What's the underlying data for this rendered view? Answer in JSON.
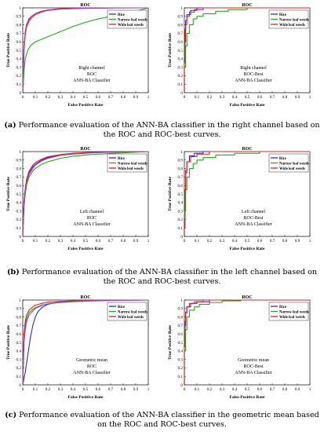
{
  "colors": {
    "rice": "#2a2ad8",
    "narrow": "#22a822",
    "wide": "#e02020",
    "purple": "#a040c0"
  },
  "captions": [
    {
      "letter": "(a)",
      "text": " Performance evaluation of the ANN-BA classifier in the right channel based on the ROC and ROC-best curves."
    },
    {
      "letter": "(b)",
      "text": " Performance evaluation of the ANN-BA classifier in the left channel based on the ROC and ROC-best curves."
    },
    {
      "letter": "(c)",
      "text": " Performance evaluation of the ANN-BA classifier in the geometric mean based on the ROC and ROC-best curves."
    }
  ],
  "chart_data": [
    {
      "type": "line",
      "title": "ROC",
      "xlabel": "False Positive Rate",
      "ylabel": "True Positive Rate",
      "xlim": [
        0,
        1
      ],
      "ylim": [
        0,
        1
      ],
      "xticks": [
        "0",
        "0.1",
        "0.2",
        "0.3",
        "0.4",
        "0.5",
        "0.6",
        "0.7",
        "0.8",
        "0.9",
        "1"
      ],
      "yticks": [
        "0",
        "0.1",
        "0.2",
        "0.3",
        "0.4",
        "0.5",
        "0.6",
        "0.7",
        "0.8",
        "0.9",
        "1"
      ],
      "legend": [
        "Rice",
        "Narrow leaf weeds",
        "Wide leaf weeds"
      ],
      "annotation": [
        "Right channel",
        "ROC",
        "ANN-BA Classifier"
      ],
      "series": [
        {
          "name": "Rice",
          "color": "rice",
          "x": [
            0,
            0.01,
            0.02,
            0.03,
            0.05,
            0.07,
            0.1,
            0.15,
            0.2,
            0.3,
            0.4,
            0.5,
            0.6,
            0.8,
            1
          ],
          "y": [
            0,
            0.5,
            0.7,
            0.8,
            0.87,
            0.9,
            0.93,
            0.96,
            0.97,
            0.985,
            0.99,
            0.995,
            0.997,
            0.999,
            1
          ]
        },
        {
          "name": "Narrow leaf weeds",
          "color": "narrow",
          "x": [
            0,
            0.01,
            0.02,
            0.04,
            0.06,
            0.1,
            0.15,
            0.2,
            0.3,
            0.4,
            0.5,
            0.6,
            0.7,
            0.8,
            0.9,
            1
          ],
          "y": [
            0,
            0.25,
            0.4,
            0.5,
            0.55,
            0.6,
            0.63,
            0.66,
            0.72,
            0.78,
            0.83,
            0.87,
            0.9,
            0.93,
            0.96,
            1
          ]
        },
        {
          "name": "Wide leaf weeds",
          "color": "wide",
          "x": [
            0,
            0.01,
            0.02,
            0.03,
            0.05,
            0.07,
            0.1,
            0.15,
            0.2,
            0.3,
            0.4,
            0.5,
            0.7,
            1
          ],
          "y": [
            0,
            0.55,
            0.72,
            0.8,
            0.86,
            0.9,
            0.93,
            0.96,
            0.975,
            0.99,
            0.995,
            0.998,
            1,
            1
          ]
        },
        {
          "name": "",
          "color": "purple",
          "x": [
            0,
            0.01,
            0.02,
            0.03,
            0.05,
            0.07,
            0.1,
            0.15,
            0.2,
            0.3,
            0.4,
            0.5,
            0.7,
            1
          ],
          "y": [
            0,
            0.52,
            0.68,
            0.77,
            0.84,
            0.88,
            0.92,
            0.95,
            0.97,
            0.985,
            0.992,
            0.996,
            1,
            1
          ]
        }
      ]
    },
    {
      "type": "line",
      "title": "ROC",
      "xlabel": "False Positive Rate",
      "ylabel": "True Positive Rate",
      "xlim": [
        0,
        1
      ],
      "ylim": [
        0,
        1
      ],
      "xticks": [
        "0",
        "0.1",
        "0.2",
        "0.3",
        "0.4",
        "0.5",
        "0.6",
        "0.7",
        "0.8",
        "0.9",
        "1"
      ],
      "yticks": [
        "0",
        "0.1",
        "0.2",
        "0.3",
        "0.4",
        "0.5",
        "0.6",
        "0.7",
        "0.8",
        "0.9",
        "1"
      ],
      "legend": [
        "Rice",
        "Narrow leaf weeds",
        "Wide leaf weeds"
      ],
      "annotation": [
        "Right channel",
        "ROC-Best",
        "ANN-BA Classifier"
      ],
      "series": [
        {
          "name": "Rice",
          "color": "rice",
          "x": [
            0,
            0,
            0.005,
            0.005,
            0.01,
            0.01,
            0.02,
            0.02,
            0.05,
            0.05,
            0.1,
            0.1,
            1
          ],
          "y": [
            0,
            0.4,
            0.4,
            0.75,
            0.75,
            0.85,
            0.85,
            0.92,
            0.92,
            0.97,
            0.97,
            1,
            1
          ]
        },
        {
          "name": "Narrow leaf weeds",
          "color": "narrow",
          "x": [
            0,
            0,
            0.01,
            0.01,
            0.02,
            0.02,
            0.04,
            0.04,
            0.07,
            0.07,
            0.1,
            0.1,
            0.15,
            0.15,
            0.25,
            0.25,
            0.35,
            0.35,
            0.5,
            0.5,
            1
          ],
          "y": [
            0,
            0.3,
            0.3,
            0.55,
            0.55,
            0.7,
            0.7,
            0.8,
            0.8,
            0.87,
            0.87,
            0.9,
            0.9,
            0.93,
            0.93,
            0.96,
            0.96,
            0.98,
            0.98,
            1,
            1
          ]
        },
        {
          "name": "Wide leaf weeds",
          "color": "wide",
          "x": [
            0,
            0,
            0.005,
            0.005,
            0.01,
            0.01,
            0.02,
            0.02,
            0.04,
            0.04,
            0.08,
            0.08,
            0.15,
            0.15,
            1
          ],
          "y": [
            0,
            0.35,
            0.35,
            0.6,
            0.6,
            0.8,
            0.8,
            0.9,
            0.9,
            0.95,
            0.95,
            0.98,
            0.98,
            1,
            1
          ]
        }
      ]
    },
    {
      "type": "line",
      "title": "ROC",
      "xlabel": "False Positive Rate",
      "ylabel": "True Positive Rate",
      "xlim": [
        0,
        1
      ],
      "ylim": [
        0,
        1
      ],
      "xticks": [
        "0",
        "0.1",
        "0.2",
        "0.3",
        "0.4",
        "0.5",
        "0.6",
        "0.7",
        "0.8",
        "0.9",
        "1"
      ],
      "yticks": [
        "0",
        "0.1",
        "0.2",
        "0.3",
        "0.4",
        "0.5",
        "0.6",
        "0.7",
        "0.8",
        "0.9",
        "1"
      ],
      "legend": [
        "Rice",
        "Narrow leaf weeds",
        "Wide leaf weeds"
      ],
      "annotation": [
        "Left channel",
        "ROC",
        "ANN-BA Classifier"
      ],
      "series": [
        {
          "name": "Rice",
          "color": "rice",
          "x": [
            0,
            0.01,
            0.02,
            0.03,
            0.05,
            0.08,
            0.1,
            0.15,
            0.2,
            0.3,
            0.4,
            0.5,
            0.6,
            0.8,
            1
          ],
          "y": [
            0,
            0.4,
            0.55,
            0.65,
            0.75,
            0.82,
            0.85,
            0.9,
            0.93,
            0.96,
            0.975,
            0.985,
            0.99,
            0.997,
            1
          ]
        },
        {
          "name": "Narrow leaf weeds",
          "color": "narrow",
          "x": [
            0,
            0.01,
            0.02,
            0.03,
            0.05,
            0.08,
            0.1,
            0.15,
            0.2,
            0.3,
            0.4,
            0.5,
            0.6,
            0.8,
            1
          ],
          "y": [
            0,
            0.35,
            0.5,
            0.6,
            0.7,
            0.77,
            0.8,
            0.85,
            0.88,
            0.92,
            0.945,
            0.96,
            0.97,
            0.985,
            1
          ]
        },
        {
          "name": "Wide leaf weeds",
          "color": "wide",
          "x": [
            0,
            0.01,
            0.02,
            0.03,
            0.05,
            0.08,
            0.1,
            0.15,
            0.2,
            0.3,
            0.4,
            0.5,
            0.6,
            0.8,
            1
          ],
          "y": [
            0,
            0.42,
            0.57,
            0.67,
            0.77,
            0.84,
            0.87,
            0.91,
            0.94,
            0.965,
            0.98,
            0.988,
            0.993,
            0.998,
            1
          ]
        },
        {
          "name": "",
          "color": "purple",
          "x": [
            0,
            0.01,
            0.02,
            0.03,
            0.05,
            0.08,
            0.1,
            0.15,
            0.2,
            0.3,
            0.4,
            0.5,
            0.6,
            0.8,
            1
          ],
          "y": [
            0,
            0.38,
            0.53,
            0.63,
            0.73,
            0.8,
            0.84,
            0.89,
            0.92,
            0.955,
            0.97,
            0.98,
            0.988,
            0.995,
            1
          ]
        }
      ]
    },
    {
      "type": "line",
      "title": "ROC",
      "xlabel": "False Positive Rate",
      "ylabel": "True Positive Rate",
      "xlim": [
        0,
        1
      ],
      "ylim": [
        0,
        1
      ],
      "xticks": [
        "0",
        "0.1",
        "0.2",
        "0.3",
        "0.4",
        "0.5",
        "0.6",
        "0.7",
        "0.8",
        "0.9",
        "1"
      ],
      "yticks": [
        "0",
        "0.1",
        "0.2",
        "0.3",
        "0.4",
        "0.5",
        "0.6",
        "0.7",
        "0.8",
        "0.9",
        "1"
      ],
      "legend": [
        "Rice",
        "Narrow leaf weeds",
        "Wide leaf weeds"
      ],
      "annotation": [
        "Left channel",
        "ROC-Best",
        "ANN-BA Classifier"
      ],
      "series": [
        {
          "name": "Rice",
          "color": "rice",
          "x": [
            0,
            0,
            0.005,
            0.005,
            0.01,
            0.01,
            0.02,
            0.02,
            0.04,
            0.04,
            0.08,
            0.08,
            0.15,
            0.15,
            1
          ],
          "y": [
            0,
            0.1,
            0.1,
            0.5,
            0.5,
            0.75,
            0.75,
            0.88,
            0.88,
            0.95,
            0.95,
            0.98,
            0.98,
            1,
            1
          ]
        },
        {
          "name": "Narrow leaf weeds",
          "color": "narrow",
          "x": [
            0,
            0,
            0.01,
            0.01,
            0.02,
            0.02,
            0.04,
            0.04,
            0.07,
            0.07,
            0.1,
            0.1,
            0.15,
            0.15,
            0.25,
            0.25,
            0.4,
            0.4,
            0.6,
            0.6,
            1
          ],
          "y": [
            0,
            0.3,
            0.3,
            0.55,
            0.55,
            0.7,
            0.7,
            0.8,
            0.8,
            0.86,
            0.86,
            0.9,
            0.9,
            0.93,
            0.93,
            0.96,
            0.96,
            0.98,
            0.98,
            1,
            1
          ]
        },
        {
          "name": "Wide leaf weeds",
          "color": "wide",
          "x": [
            0,
            0,
            0.005,
            0.005,
            0.01,
            0.01,
            0.02,
            0.02,
            0.05,
            0.05,
            0.1,
            0.1,
            0.2,
            0.2,
            1
          ],
          "y": [
            0,
            0.2,
            0.2,
            0.55,
            0.55,
            0.78,
            0.78,
            0.88,
            0.88,
            0.94,
            0.94,
            0.97,
            0.97,
            1,
            1
          ]
        }
      ]
    },
    {
      "type": "line",
      "title": "ROC",
      "xlabel": "False Positive Rate",
      "ylabel": "True Positive Rate",
      "xlim": [
        0,
        1
      ],
      "ylim": [
        0,
        1
      ],
      "xticks": [
        "0",
        "0.1",
        "0.2",
        "0.3",
        "0.4",
        "0.5",
        "0.6",
        "0.7",
        "0.8",
        "0.9",
        "1"
      ],
      "yticks": [
        "0",
        "0.1",
        "0.2",
        "0.3",
        "0.4",
        "0.5",
        "0.6",
        "0.7",
        "0.8",
        "0.9",
        "1"
      ],
      "legend": [
        "Rice",
        "Narrow leaf weeds",
        "Wide leaf weeds"
      ],
      "annotation": [
        "Geometric mean",
        "ROC",
        "ANN-BA Classifier"
      ],
      "series": [
        {
          "name": "Rice",
          "color": "rice",
          "x": [
            0,
            0.02,
            0.04,
            0.06,
            0.08,
            0.1,
            0.12,
            0.15,
            0.2,
            0.3,
            0.4,
            0.5,
            0.7,
            1
          ],
          "y": [
            0,
            0.15,
            0.35,
            0.55,
            0.7,
            0.8,
            0.86,
            0.91,
            0.95,
            0.98,
            0.99,
            0.995,
            0.999,
            1
          ]
        },
        {
          "name": "Narrow leaf weeds",
          "color": "narrow",
          "x": [
            0,
            0.01,
            0.02,
            0.03,
            0.05,
            0.08,
            0.1,
            0.15,
            0.2,
            0.3,
            0.4,
            0.5,
            0.7,
            1
          ],
          "y": [
            0,
            0.55,
            0.7,
            0.78,
            0.85,
            0.89,
            0.91,
            0.94,
            0.955,
            0.97,
            0.98,
            0.987,
            0.995,
            1
          ]
        },
        {
          "name": "Wide leaf weeds",
          "color": "wide",
          "x": [
            0,
            0.01,
            0.02,
            0.03,
            0.05,
            0.08,
            0.1,
            0.15,
            0.2,
            0.3,
            0.4,
            0.5,
            0.7,
            1
          ],
          "y": [
            0,
            0.6,
            0.75,
            0.82,
            0.88,
            0.92,
            0.94,
            0.96,
            0.975,
            0.985,
            0.99,
            0.995,
            0.998,
            1
          ]
        },
        {
          "name": "",
          "color": "purple",
          "x": [
            0,
            0.01,
            0.02,
            0.03,
            0.05,
            0.08,
            0.1,
            0.15,
            0.2,
            0.3,
            0.4,
            0.5,
            0.7,
            1
          ],
          "y": [
            0,
            0.5,
            0.65,
            0.74,
            0.82,
            0.87,
            0.9,
            0.935,
            0.955,
            0.975,
            0.985,
            0.99,
            0.996,
            1
          ]
        }
      ]
    },
    {
      "type": "line",
      "title": "ROC",
      "xlabel": "False Positive Rate",
      "ylabel": "True Positive Rate",
      "xlim": [
        0,
        1
      ],
      "ylim": [
        0,
        1
      ],
      "xticks": [
        "0",
        "0.1",
        "0.2",
        "0.3",
        "0.4",
        "0.5",
        "0.6",
        "0.7",
        "0.8",
        "0.9",
        "1"
      ],
      "yticks": [
        "0",
        "0.1",
        "0.2",
        "0.3",
        "0.4",
        "0.5",
        "0.6",
        "0.7",
        "0.8",
        "0.9",
        "1"
      ],
      "legend": [
        "Rice",
        "Narrow leaf weeds",
        "Wide leaf weeds"
      ],
      "annotation": [
        "Geometric mean",
        "ROC-Best",
        "ANN-BA Classifier"
      ],
      "series": [
        {
          "name": "Rice",
          "color": "rice",
          "x": [
            0,
            0,
            0.005,
            0.005,
            0.01,
            0.01,
            0.02,
            0.02,
            0.05,
            0.05,
            0.1,
            0.1,
            0.2,
            0.2,
            1
          ],
          "y": [
            0,
            0.45,
            0.45,
            0.7,
            0.7,
            0.85,
            0.85,
            0.92,
            0.92,
            0.96,
            0.96,
            0.98,
            0.98,
            1,
            1
          ]
        },
        {
          "name": "Narrow leaf weeds",
          "color": "narrow",
          "x": [
            0,
            0,
            0.01,
            0.01,
            0.02,
            0.02,
            0.04,
            0.04,
            0.08,
            0.08,
            0.12,
            0.12,
            0.2,
            0.2,
            0.3,
            0.3,
            0.45,
            0.45,
            1
          ],
          "y": [
            0,
            0.4,
            0.4,
            0.65,
            0.65,
            0.8,
            0.8,
            0.88,
            0.88,
            0.92,
            0.92,
            0.95,
            0.95,
            0.97,
            0.97,
            0.99,
            0.99,
            1,
            1
          ]
        },
        {
          "name": "Wide leaf weeds",
          "color": "wide",
          "x": [
            0,
            0,
            0.005,
            0.005,
            0.01,
            0.01,
            0.02,
            0.02,
            0.04,
            0.04,
            0.08,
            0.08,
            0.15,
            0.15,
            1
          ],
          "y": [
            0,
            0.5,
            0.5,
            0.75,
            0.75,
            0.86,
            0.86,
            0.92,
            0.92,
            0.96,
            0.96,
            0.98,
            0.98,
            1,
            1
          ]
        }
      ]
    }
  ]
}
